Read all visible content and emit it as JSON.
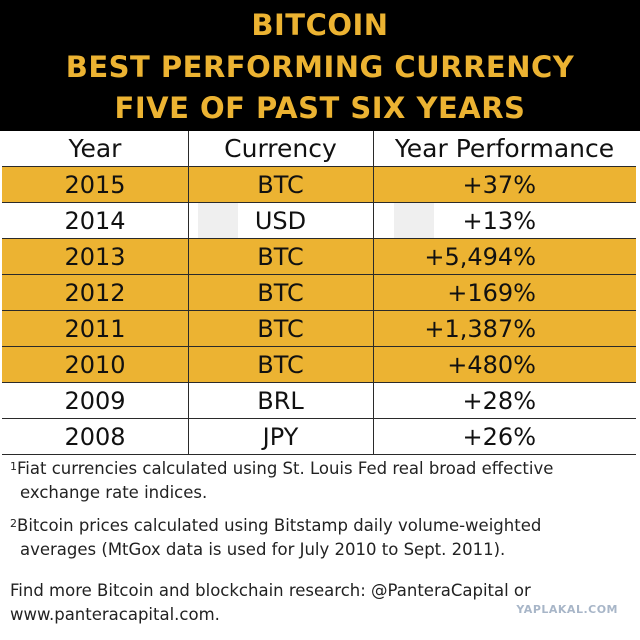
{
  "banner": {
    "line1": "BITCOIN",
    "line2": "BEST PERFORMING CURRENCY",
    "line3": "FIVE OF PAST SIX YEARS",
    "text_color": "#ecb332",
    "background": "#000000"
  },
  "table": {
    "headers": {
      "year": "Year",
      "currency": "Currency",
      "performance": "Year Performance"
    },
    "highlight_color": "#ecb332",
    "rows": [
      {
        "year": "2015",
        "currency": "BTC",
        "performance": "+37%",
        "highlighted": true
      },
      {
        "year": "2014",
        "currency": "USD",
        "performance": "+13%",
        "highlighted": false
      },
      {
        "year": "2013",
        "currency": "BTC",
        "performance": "+5,494%",
        "highlighted": true
      },
      {
        "year": "2012",
        "currency": "BTC",
        "performance": "+169%",
        "highlighted": true
      },
      {
        "year": "2011",
        "currency": "BTC",
        "performance": "+1,387%",
        "highlighted": true
      },
      {
        "year": "2010",
        "currency": "BTC",
        "performance": "+480%",
        "highlighted": true
      },
      {
        "year": "2009",
        "currency": "BRL",
        "performance": "+28%",
        "highlighted": false
      },
      {
        "year": "2008",
        "currency": "JPY",
        "performance": "+26%",
        "highlighted": false
      }
    ]
  },
  "footnotes": {
    "n1_mark": "1",
    "n1_line1": "Fiat currencies calculated using St. Louis Fed real broad effective",
    "n1_line2": "exchange rate indices.",
    "n2_mark": "2",
    "n2_line1": "Bitcoin prices calculated using Bitstamp daily volume-weighted",
    "n2_line2": "averages (MtGox data is used for July 2010 to Sept. 2011).",
    "more_line1": "Find more Bitcoin and blockchain research: @PanteraCapital or",
    "more_line2": "www.panteracapital.com."
  },
  "watermark": {
    "text": "YAPLAKAL.COM"
  }
}
